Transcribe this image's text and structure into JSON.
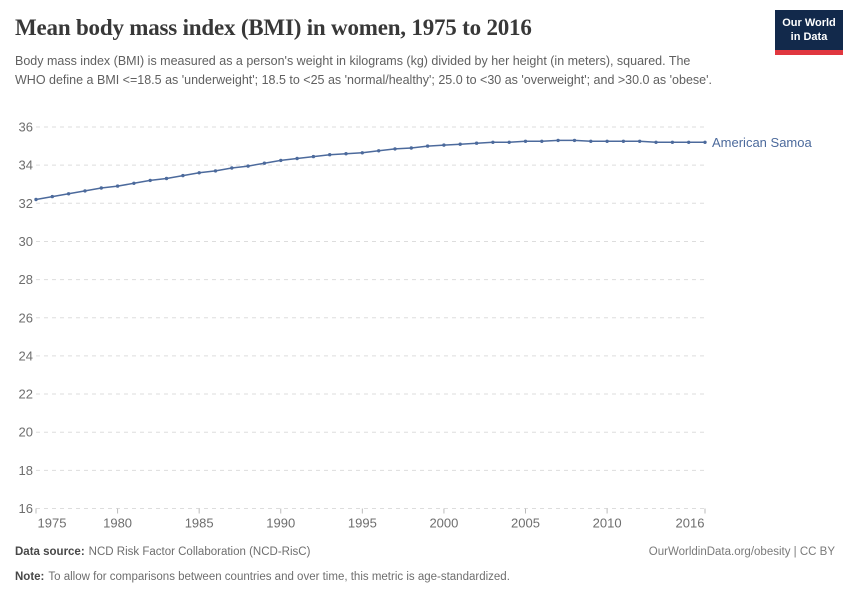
{
  "header": {
    "title": "Mean body mass index (BMI) in women, 1975 to 2016",
    "subtitle": "Body mass index (BMI) is measured as a person's weight in kilograms (kg) divided by her height (in meters), squared. The WHO define a BMI <=18.5 as 'underweight'; 18.5 to <25 as 'normal/healthy'; 25.0 to <30 as 'overweight'; and >30.0 as 'obese'.",
    "logo": {
      "line1": "Our World",
      "line2": "in Data",
      "bg_color": "#12294B",
      "accent_color": "#E0373F",
      "text_color": "#FFFFFF"
    }
  },
  "chart_data": {
    "type": "line",
    "title": "Mean body mass index (BMI) in women, 1975 to 2016",
    "x": [
      1975,
      1976,
      1977,
      1978,
      1979,
      1980,
      1981,
      1982,
      1983,
      1984,
      1985,
      1986,
      1987,
      1988,
      1989,
      1990,
      1991,
      1992,
      1993,
      1994,
      1995,
      1996,
      1997,
      1998,
      1999,
      2000,
      2001,
      2002,
      2003,
      2004,
      2005,
      2006,
      2007,
      2008,
      2009,
      2010,
      2011,
      2012,
      2013,
      2014,
      2015,
      2016
    ],
    "series": [
      {
        "name": "American Samoa",
        "color": "#4C6A9C",
        "values": [
          32.2,
          32.35,
          32.5,
          32.65,
          32.8,
          32.9,
          33.05,
          33.2,
          33.3,
          33.45,
          33.6,
          33.7,
          33.85,
          33.95,
          34.1,
          34.25,
          34.35,
          34.45,
          34.55,
          34.6,
          34.65,
          34.75,
          34.85,
          34.9,
          35.0,
          35.05,
          35.1,
          35.15,
          35.2,
          35.2,
          35.25,
          35.25,
          35.3,
          35.3,
          35.25,
          35.25,
          35.25,
          35.25,
          35.2,
          35.2,
          35.2,
          35.2
        ]
      }
    ],
    "x_ticks": [
      1975,
      1980,
      1985,
      1990,
      1995,
      2000,
      2005,
      2010,
      2016
    ],
    "y_ticks": [
      16,
      18,
      20,
      22,
      24,
      26,
      28,
      30,
      32,
      34,
      36
    ],
    "xlim": [
      1975,
      2016
    ],
    "ylim": [
      16,
      36
    ],
    "xlabel": "",
    "ylabel": "",
    "grid": "horizontal-dashed",
    "legend": "end-of-line-label"
  },
  "footer": {
    "data_source_label": "Data source:",
    "data_source_text": "NCD Risk Factor Collaboration (NCD-RisC)",
    "note_label": "Note:",
    "note_text": "To allow for comparisons between countries and over time, this metric is age-standardized.",
    "license_text": "OurWorldinData.org/obesity | CC BY"
  },
  "colors": {
    "line": "#4C6A9C",
    "grid": "#DDDDDD",
    "axis_text": "#6E6E6E",
    "title_text": "#383838",
    "subtitle_text": "#606060"
  }
}
